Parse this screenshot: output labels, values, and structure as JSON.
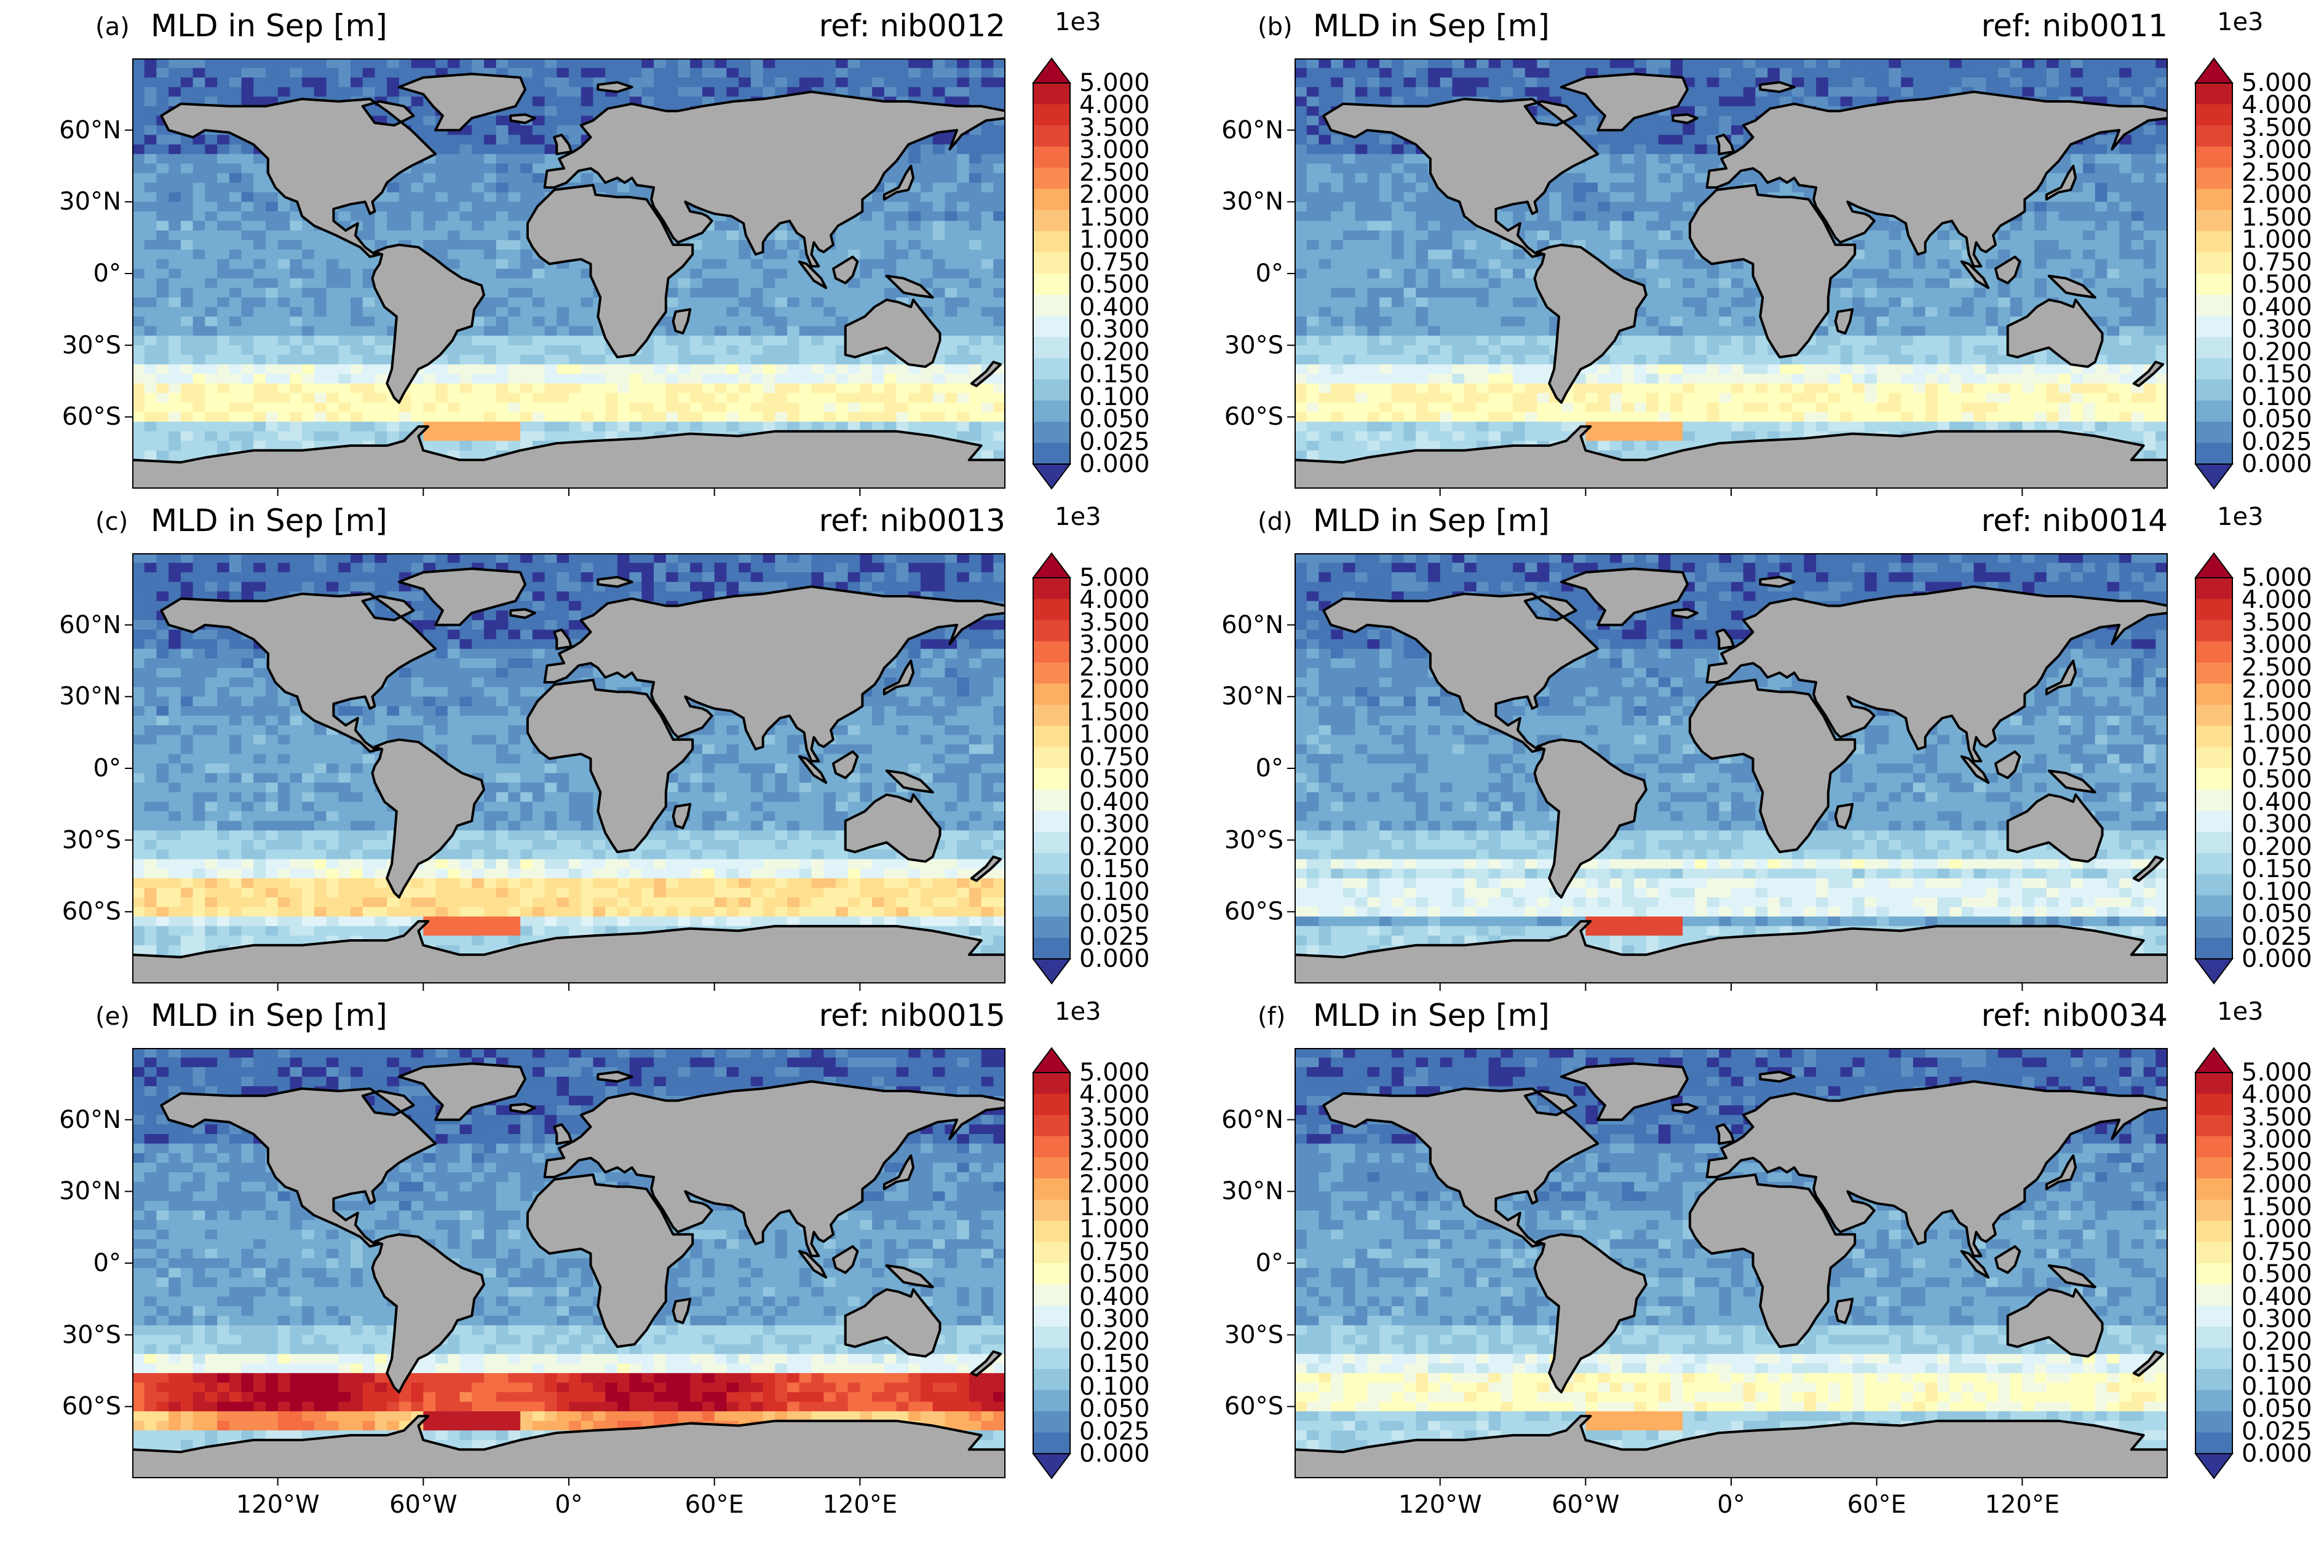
{
  "panels": [
    {
      "letter": "(a)",
      "title": "MLD in Sep [m]",
      "ref": "ref: nib0012",
      "show_x_labels": false,
      "variant": 0
    },
    {
      "letter": "(b)",
      "title": "MLD in Sep [m]",
      "ref": "ref: nib0011",
      "show_x_labels": false,
      "variant": 1
    },
    {
      "letter": "(c)",
      "title": "MLD in Sep [m]",
      "ref": "ref: nib0013",
      "show_x_labels": false,
      "variant": 2
    },
    {
      "letter": "(d)",
      "title": "MLD in Sep [m]",
      "ref": "ref: nib0014",
      "show_x_labels": false,
      "variant": 3
    },
    {
      "letter": "(e)",
      "title": "MLD in Sep [m]",
      "ref": "ref: nib0015",
      "show_x_labels": true,
      "variant": 4
    },
    {
      "letter": "(f)",
      "title": "MLD in Sep [m]",
      "ref": "ref: nib0034",
      "show_x_labels": true,
      "variant": 5
    }
  ],
  "lat_labels": [
    "60°N",
    "30°N",
    "0°",
    "30°S",
    "60°S"
  ],
  "lon_labels": [
    "120°W",
    "60°W",
    "0°",
    "60°E",
    "120°E"
  ],
  "colorbar": {
    "scale_label": "1e3",
    "ticks": [
      "5.000",
      "4.000",
      "3.500",
      "3.000",
      "2.500",
      "2.000",
      "1.500",
      "1.000",
      "0.750",
      "0.500",
      "0.400",
      "0.300",
      "0.200",
      "0.150",
      "0.100",
      "0.050",
      "0.025",
      "0.000"
    ],
    "colors": [
      "#313695",
      "#4575b4",
      "#5b8fc2",
      "#74add1",
      "#92c5de",
      "#abd9e9",
      "#c6e6f0",
      "#e0f3f8",
      "#f2f9e3",
      "#ffffbf",
      "#fff0a8",
      "#fee090",
      "#fdc57a",
      "#fdae61",
      "#f98b50",
      "#f46d43",
      "#e24733",
      "#d73027",
      "#bd1c27",
      "#a50026"
    ],
    "extend": "both"
  },
  "land_color": "#aaaaaa",
  "coast_color": "#000000"
}
